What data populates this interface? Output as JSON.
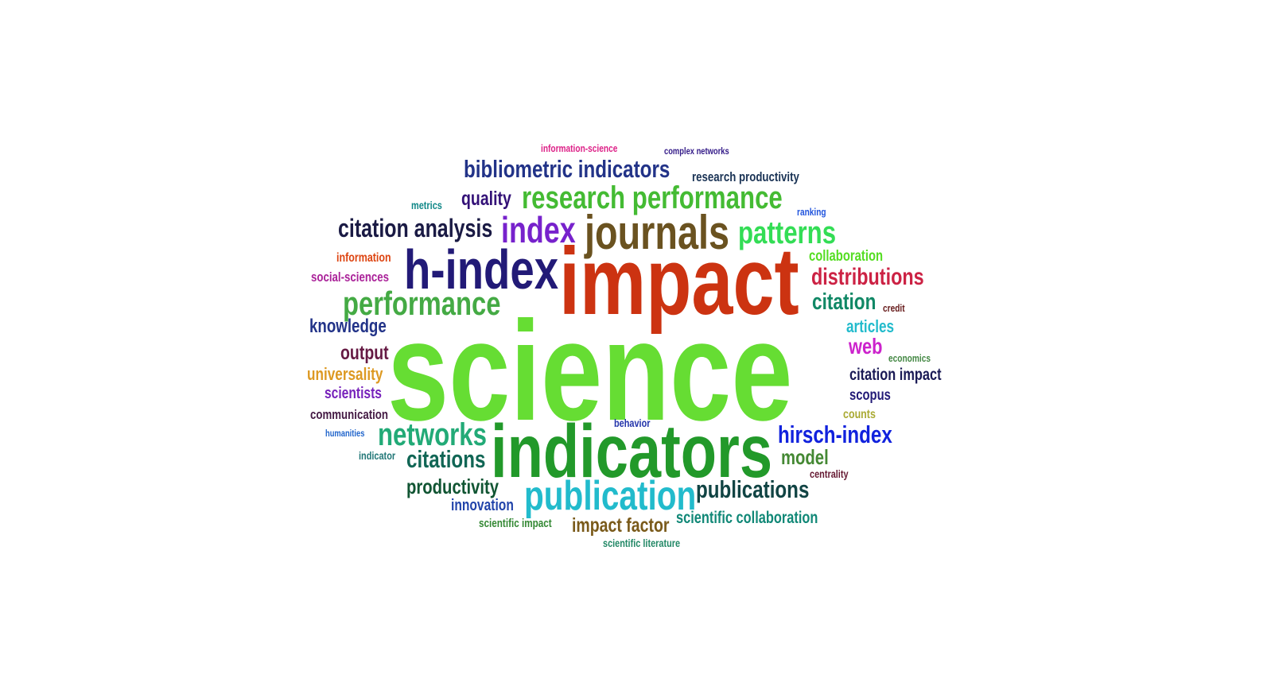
{
  "word_cloud": {
    "words": [
      {
        "id": "science",
        "text": "science",
        "color": "#66dd33",
        "rank": 1
      },
      {
        "id": "impact",
        "text": "impact",
        "color": "#cc3311",
        "rank": 2
      },
      {
        "id": "indicators",
        "text": "indicators",
        "color": "#22992a",
        "rank": 3
      },
      {
        "id": "h-index",
        "text": "h-index",
        "color": "#221a77",
        "rank": 4
      },
      {
        "id": "journals",
        "text": "journals",
        "color": "#6a5220",
        "rank": 5
      },
      {
        "id": "research-performance",
        "text": "research performance",
        "color": "#44bb33",
        "rank": 6
      },
      {
        "id": "publication",
        "text": "publication",
        "color": "#22bbcc",
        "rank": 7
      },
      {
        "id": "index",
        "text": "index",
        "color": "#7722cc",
        "rank": 8
      },
      {
        "id": "networks",
        "text": "networks",
        "color": "#22aa77",
        "rank": 9
      },
      {
        "id": "performance",
        "text": "performance",
        "color": "#44aa44",
        "rank": 10
      },
      {
        "id": "bibliometric-indicators",
        "text": "bibliometric indicators",
        "color": "#223388",
        "rank": 11
      },
      {
        "id": "patterns",
        "text": "patterns",
        "color": "#33dd55",
        "rank": 12
      },
      {
        "id": "citation-analysis",
        "text": "citation analysis",
        "color": "#1a1a44",
        "rank": 13
      },
      {
        "id": "hirsch-index",
        "text": "hirsch-index",
        "color": "#1122dd",
        "rank": 14
      },
      {
        "id": "distributions",
        "text": "distributions",
        "color": "#cc2244",
        "rank": 15
      },
      {
        "id": "publications",
        "text": "publications",
        "color": "#114444",
        "rank": 16
      },
      {
        "id": "citations",
        "text": "citations",
        "color": "#116655",
        "rank": 17
      },
      {
        "id": "productivity",
        "text": "productivity",
        "color": "#115533",
        "rank": 18
      },
      {
        "id": "citation",
        "text": "citation",
        "color": "#118866",
        "rank": 19
      },
      {
        "id": "quality",
        "text": "quality",
        "color": "#331177",
        "rank": 20
      },
      {
        "id": "impact-factor",
        "text": "impact factor",
        "color": "#7a5a1a",
        "rank": 21
      },
      {
        "id": "model",
        "text": "model",
        "color": "#448833",
        "rank": 22
      },
      {
        "id": "web",
        "text": "web",
        "color": "#cc22cc",
        "rank": 23
      },
      {
        "id": "output",
        "text": "output",
        "color": "#661a44",
        "rank": 24
      },
      {
        "id": "scientific-collaboration",
        "text": "scientific collaboration",
        "color": "#118877",
        "rank": 25
      },
      {
        "id": "knowledge",
        "text": "knowledge",
        "color": "#223388",
        "rank": 26
      },
      {
        "id": "citation-impact",
        "text": "citation impact",
        "color": "#1a1a55",
        "rank": 27
      },
      {
        "id": "collaboration",
        "text": "collaboration",
        "color": "#55dd22",
        "rank": 28
      },
      {
        "id": "articles",
        "text": "articles",
        "color": "#22bbcc",
        "rank": 29
      },
      {
        "id": "universality",
        "text": "universality",
        "color": "#dd9922",
        "rank": 30
      },
      {
        "id": "innovation",
        "text": "innovation",
        "color": "#2244aa",
        "rank": 31
      },
      {
        "id": "scientists",
        "text": "scientists",
        "color": "#7722bb",
        "rank": 32
      },
      {
        "id": "research-productivity",
        "text": "research productivity",
        "color": "#1a3355",
        "rank": 33
      },
      {
        "id": "scopus",
        "text": "scopus",
        "color": "#221a77",
        "rank": 34
      },
      {
        "id": "communication",
        "text": "communication",
        "color": "#441a44",
        "rank": 35
      },
      {
        "id": "social-sciences",
        "text": "social-sciences",
        "color": "#aa2299",
        "rank": 36
      },
      {
        "id": "information",
        "text": "information",
        "color": "#dd4411",
        "rank": 37
      },
      {
        "id": "scientific-impact",
        "text": "scientific impact",
        "color": "#338833",
        "rank": 38
      },
      {
        "id": "scientific-literature",
        "text": "scientific literature",
        "color": "#228866",
        "rank": 39
      },
      {
        "id": "counts",
        "text": "counts",
        "color": "#aaaa33",
        "rank": 40
      },
      {
        "id": "centrality",
        "text": "centrality",
        "color": "#661a33",
        "rank": 41
      },
      {
        "id": "metrics",
        "text": "metrics",
        "color": "#118888",
        "rank": 42
      },
      {
        "id": "indicator",
        "text": "indicator",
        "color": "#227777",
        "rank": 43
      },
      {
        "id": "ranking",
        "text": "ranking",
        "color": "#2255dd",
        "rank": 44
      },
      {
        "id": "behavior",
        "text": "behavior",
        "color": "#2233aa",
        "rank": 45
      },
      {
        "id": "humanities",
        "text": "humanities",
        "color": "#2266cc",
        "rank": 46
      },
      {
        "id": "credit",
        "text": "credit",
        "color": "#661a1a",
        "rank": 47
      },
      {
        "id": "economics",
        "text": "economics",
        "color": "#448844",
        "rank": 48
      },
      {
        "id": "information-science",
        "text": "information-science",
        "color": "#dd2288",
        "rank": 49
      },
      {
        "id": "complex-networks",
        "text": "complex networks",
        "color": "#331a88",
        "rank": 50
      }
    ]
  }
}
